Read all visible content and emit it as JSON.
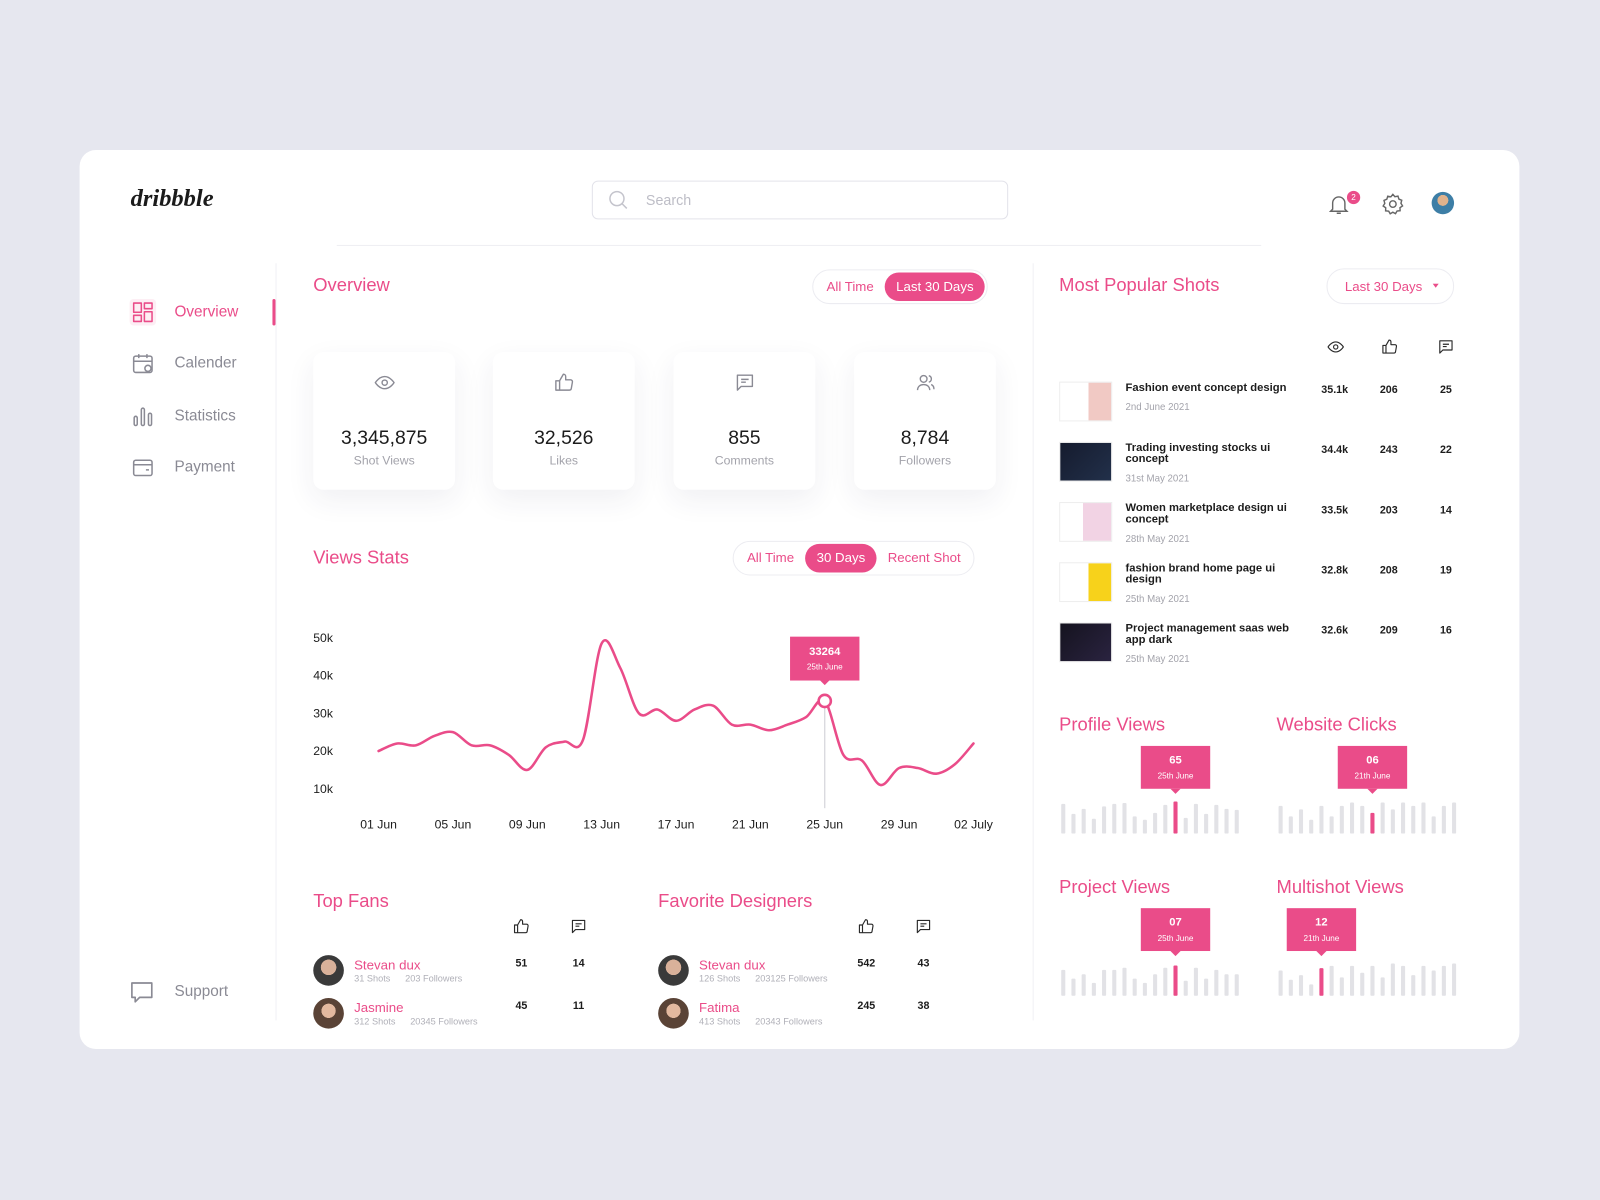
{
  "brand": "dribbble",
  "search": {
    "placeholder": "Search"
  },
  "header": {
    "notification_count": "2"
  },
  "nav": {
    "items": [
      "Overview",
      "Calender",
      "Statistics",
      "Payment"
    ],
    "active": 0,
    "support": "Support"
  },
  "overview": {
    "title": "Overview",
    "filters": [
      "All Time",
      "Last 30 Days"
    ],
    "active_filter": 1,
    "stats": [
      {
        "value": "3,345,875",
        "label": "Shot Views"
      },
      {
        "value": "32,526",
        "label": "Likes"
      },
      {
        "value": "855",
        "label": "Comments"
      },
      {
        "value": "8,784",
        "label": "Followers"
      }
    ]
  },
  "views_stats": {
    "title": "Views Stats",
    "filters": [
      "All Time",
      "30 Days",
      "Recent Shot"
    ],
    "active_filter": 1,
    "chart": {
      "type": "line",
      "color": "#ea4c89",
      "categories": [
        "01 Jun",
        null,
        null,
        null,
        "05 Jun",
        null,
        null,
        null,
        "09 Jun",
        null,
        null,
        null,
        "13 Jun",
        null,
        null,
        null,
        "17 Jun",
        null,
        null,
        null,
        "21 Jun",
        null,
        null,
        null,
        "25 Jun",
        null,
        null,
        null,
        "29 Jun",
        null,
        null,
        null,
        "02 July"
      ],
      "values": [
        20000,
        22000,
        21500,
        24000,
        25000,
        21500,
        21500,
        19000,
        15000,
        21000,
        22500,
        23000,
        48500,
        42000,
        30000,
        31000,
        28000,
        31000,
        32000,
        27000,
        27000,
        25500,
        27000,
        29000,
        33264,
        19000,
        17500,
        11000,
        15500,
        15500,
        14000,
        16500,
        22000
      ],
      "ylim": [
        5000,
        50000
      ],
      "yticks": [
        {
          "value": 10000,
          "label": "10k"
        },
        {
          "value": 20000,
          "label": "20k"
        },
        {
          "value": 30000,
          "label": "30k"
        },
        {
          "value": 40000,
          "label": "40k"
        },
        {
          "value": 50000,
          "label": "50k"
        }
      ],
      "grid": false,
      "highlight": {
        "value": 33264,
        "date": "25th June"
      }
    }
  },
  "popular_shots": {
    "title": "Most Popular Shots",
    "filter": "Last 30 Days",
    "rows": [
      {
        "title": "Fashion event concept design",
        "date": "2nd June 2021",
        "views": "35.1k",
        "likes": "206",
        "comments": "25"
      },
      {
        "title": "Trading investing stocks ui concept",
        "date": "31st May 2021",
        "views": "34.4k",
        "likes": "243",
        "comments": "22"
      },
      {
        "title": "Women marketplace design ui concept",
        "date": "28th May 2021",
        "views": "33.5k",
        "likes": "203",
        "comments": "14"
      },
      {
        "title": "fashion brand home page ui design",
        "date": "25th May 2021",
        "views": "32.8k",
        "likes": "208",
        "comments": "19"
      },
      {
        "title": "Project management saas web app dark",
        "date": "25th May 2021",
        "views": "32.6k",
        "likes": "209",
        "comments": "16"
      }
    ]
  },
  "mini_charts": [
    {
      "title": "Profile Views",
      "ylim": [
        0,
        70
      ],
      "values": [
        60,
        40,
        50,
        30,
        55,
        60,
        62,
        35,
        28,
        42,
        58,
        65,
        32,
        60,
        40,
        58,
        50,
        48
      ],
      "highlight": {
        "value": 65,
        "date": "25th June"
      }
    },
    {
      "title": "Website Clicks",
      "ylim": [
        0,
        10
      ],
      "values": [
        8,
        5,
        7,
        4,
        8,
        5,
        8,
        9,
        8,
        6,
        9,
        7,
        9,
        8,
        9,
        5,
        8,
        9
      ],
      "highlight": {
        "value": 6,
        "value_label": "06",
        "date": "21th June"
      }
    },
    {
      "title": "Project Views",
      "ylim": [
        0,
        8
      ],
      "values": [
        6,
        4,
        5,
        3,
        6,
        6,
        6.5,
        4,
        3,
        5,
        6.5,
        7,
        3.5,
        6.5,
        4,
        6,
        5,
        5
      ],
      "highlight": {
        "value": 7,
        "value_label": "07",
        "date": "25th June"
      }
    },
    {
      "title": "Multishot Views",
      "ylim": [
        0,
        15
      ],
      "values": [
        11,
        7,
        9,
        5,
        12,
        13,
        8,
        13,
        10,
        13,
        8,
        14,
        13,
        9,
        13,
        11,
        13,
        14
      ],
      "highlight": {
        "value": 12,
        "date": "21th June"
      }
    }
  ],
  "top_fans": {
    "title": "Top Fans",
    "rows": [
      {
        "name": "Stevan dux",
        "shots": "31 Shots",
        "followers": "203 Followers",
        "likes": "51",
        "comments": "14"
      },
      {
        "name": "Jasmine",
        "shots": "312 Shots",
        "followers": "20345 Followers",
        "likes": "45",
        "comments": "11"
      }
    ]
  },
  "favorite_designers": {
    "title": "Favorite Designers",
    "rows": [
      {
        "name": "Stevan dux",
        "shots": "126 Shots",
        "followers": "203125 Followers",
        "likes": "542",
        "comments": "43"
      },
      {
        "name": "Fatima",
        "shots": "413 Shots",
        "followers": "20343 Followers",
        "likes": "245",
        "comments": "38"
      }
    ]
  }
}
